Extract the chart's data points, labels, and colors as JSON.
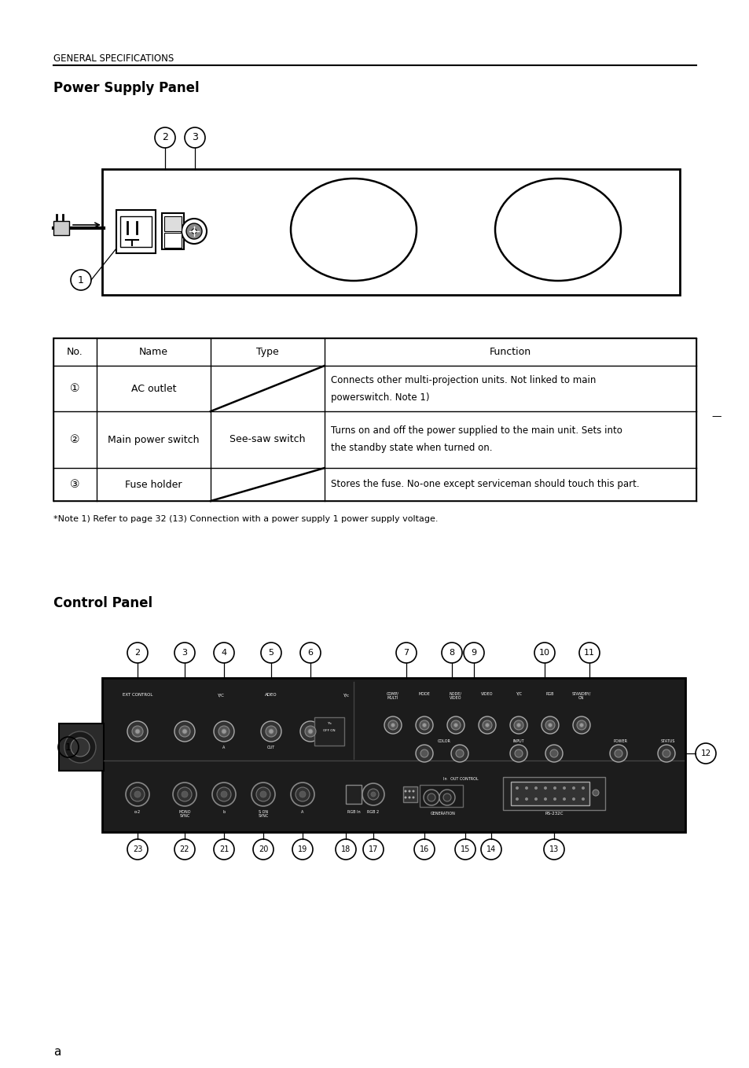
{
  "page_title": "GENERAL SPECIFICATIONS",
  "section1_title": "Power Supply Panel",
  "section2_title": "Control Panel",
  "table_headers": [
    "No.",
    "Name",
    "Type",
    "Function"
  ],
  "table_rows": [
    {
      "no": "①",
      "name": "AC outlet",
      "type": "",
      "function": "Connects other multi-projection units. Not linked to main\npowerswitch. Note 1)"
    },
    {
      "no": "②",
      "name": "Main power switch",
      "type": "See-saw switch",
      "function": "Turns on and off the power supplied to the main unit. Sets into\nthe standby state when turned on."
    },
    {
      "no": "③",
      "name": "Fuse holder",
      "type": "",
      "function": "Stores the fuse. No-one except serviceman should touch this part."
    }
  ],
  "note_text": "*Note 1) Refer to page 32 (13) Connection with a power supply 1 power supply voltage.",
  "page_number": "a",
  "bg_color": "#ffffff",
  "text_color": "#000000"
}
